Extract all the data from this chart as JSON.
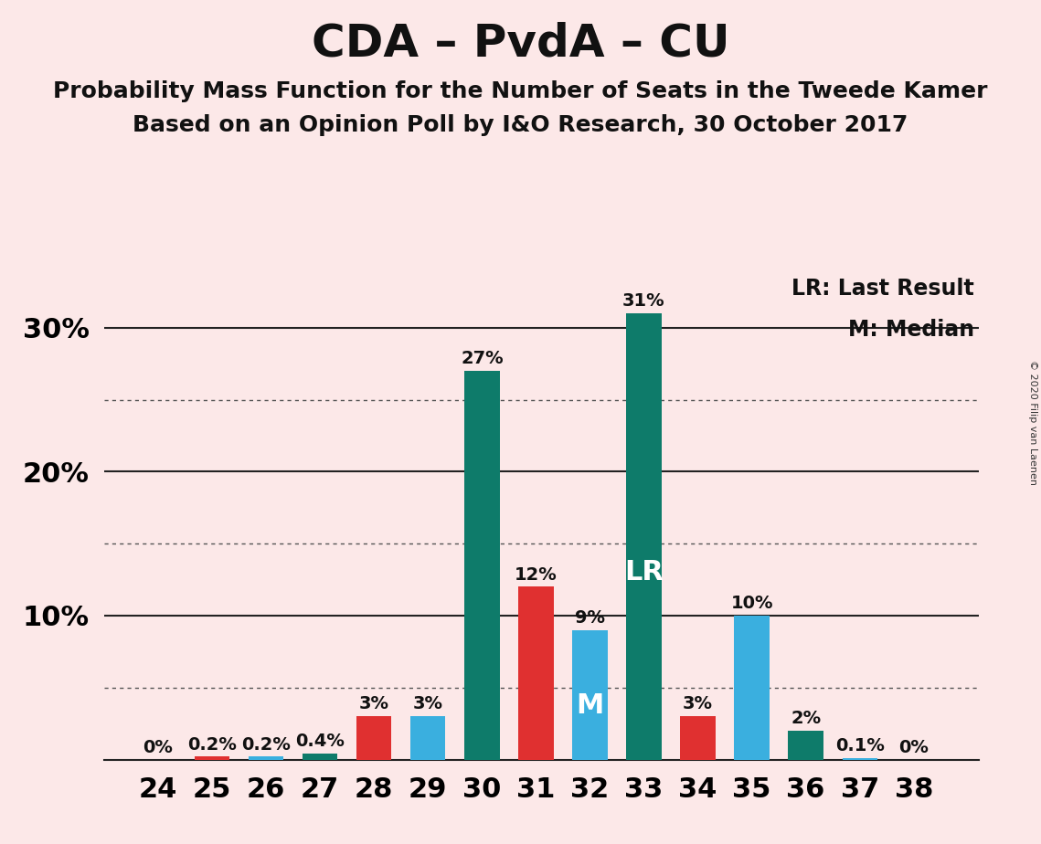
{
  "title": "CDA – PvdA – CU",
  "subtitle1": "Probability Mass Function for the Number of Seats in the Tweede Kamer",
  "subtitle2": "Based on an Opinion Poll by I&O Research, 30 October 2017",
  "copyright": "© 2020 Filip van Laenen",
  "legend_lr": "LR: Last Result",
  "legend_m": "M: Median",
  "background_color": "#fce8e8",
  "seats": [
    24,
    25,
    26,
    27,
    28,
    29,
    30,
    31,
    32,
    33,
    34,
    35,
    36,
    37,
    38
  ],
  "values": [
    0.0,
    0.2,
    0.2,
    0.4,
    3.0,
    3.0,
    27.0,
    12.0,
    9.0,
    31.0,
    3.0,
    10.0,
    2.0,
    0.1,
    0.0
  ],
  "bar_colors_per_seat": {
    "24": null,
    "25": "#e03030",
    "26": "#3aafdf",
    "27": "#0e7b6a",
    "28": "#e03030",
    "29": "#3aafdf",
    "30": "#0e7b6a",
    "31": "#e03030",
    "32": "#3aafdf",
    "33": "#0e7b6a",
    "34": "#e03030",
    "35": "#3aafdf",
    "36": "#0e7b6a",
    "37": "#3aafdf",
    "38": null
  },
  "label_formats": {
    "24": "0%",
    "25": "0.2%",
    "26": "0.2%",
    "27": "0.4%",
    "28": "3%",
    "29": "3%",
    "30": "27%",
    "31": "12%",
    "32": "9%",
    "33": "31%",
    "34": "3%",
    "35": "10%",
    "36": "2%",
    "37": "0.1%",
    "38": "0%"
  },
  "lr_seat": 33,
  "median_seat": 32,
  "ylim_max": 34,
  "title_fontsize": 36,
  "subtitle_fontsize": 18,
  "axis_fontsize": 22,
  "label_fontsize": 14,
  "inner_label_fontsize": 22,
  "legend_fontsize": 17
}
